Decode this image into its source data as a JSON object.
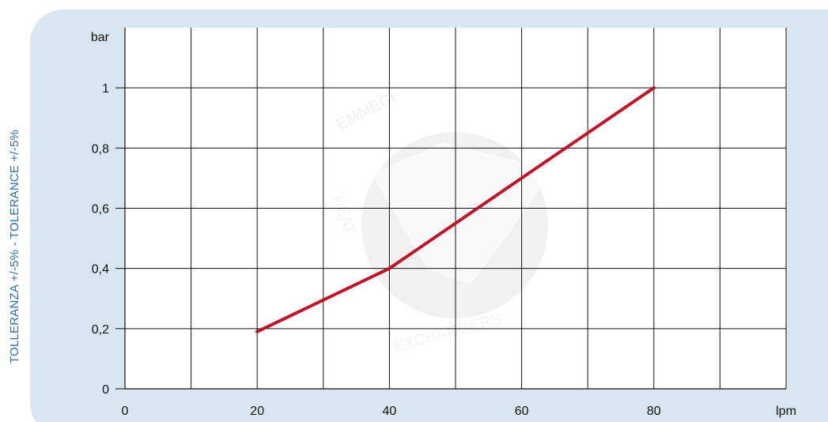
{
  "side_label": "TOLLERANZA +/-5% - TOLERANCE +/-5%",
  "colors": {
    "panel": "#d7e6f0",
    "line": "#c0142b",
    "grid": "#111111",
    "side_label": "#2a6db0"
  },
  "chart_data": {
    "type": "line",
    "xlabel": "lpm",
    "ylabel": "bar",
    "xlim": [
      0,
      100
    ],
    "ylim": [
      0,
      1.2
    ],
    "x_ticks": [
      0,
      20,
      40,
      60,
      80
    ],
    "x_tick_labels": [
      "0",
      "20",
      "40",
      "60",
      "80"
    ],
    "y_ticks": [
      0,
      0.2,
      0.4,
      0.6,
      0.8,
      1
    ],
    "y_tick_labels": [
      "0",
      "0,2",
      "0,4",
      "0,6",
      "0,8",
      "1"
    ],
    "x_gridlines": [
      0,
      10,
      20,
      30,
      40,
      50,
      60,
      70,
      80,
      90,
      100
    ],
    "y_gridlines": [
      0.2,
      0.4,
      0.6,
      0.8,
      1
    ],
    "grid": true,
    "series": [
      {
        "x": [
          20,
          40,
          80
        ],
        "y": [
          0.19,
          0.4,
          1.0
        ]
      }
    ]
  },
  "watermark": {
    "brand": "EMMEGI",
    "tagline": "HEAT-EXCHANGERS"
  }
}
